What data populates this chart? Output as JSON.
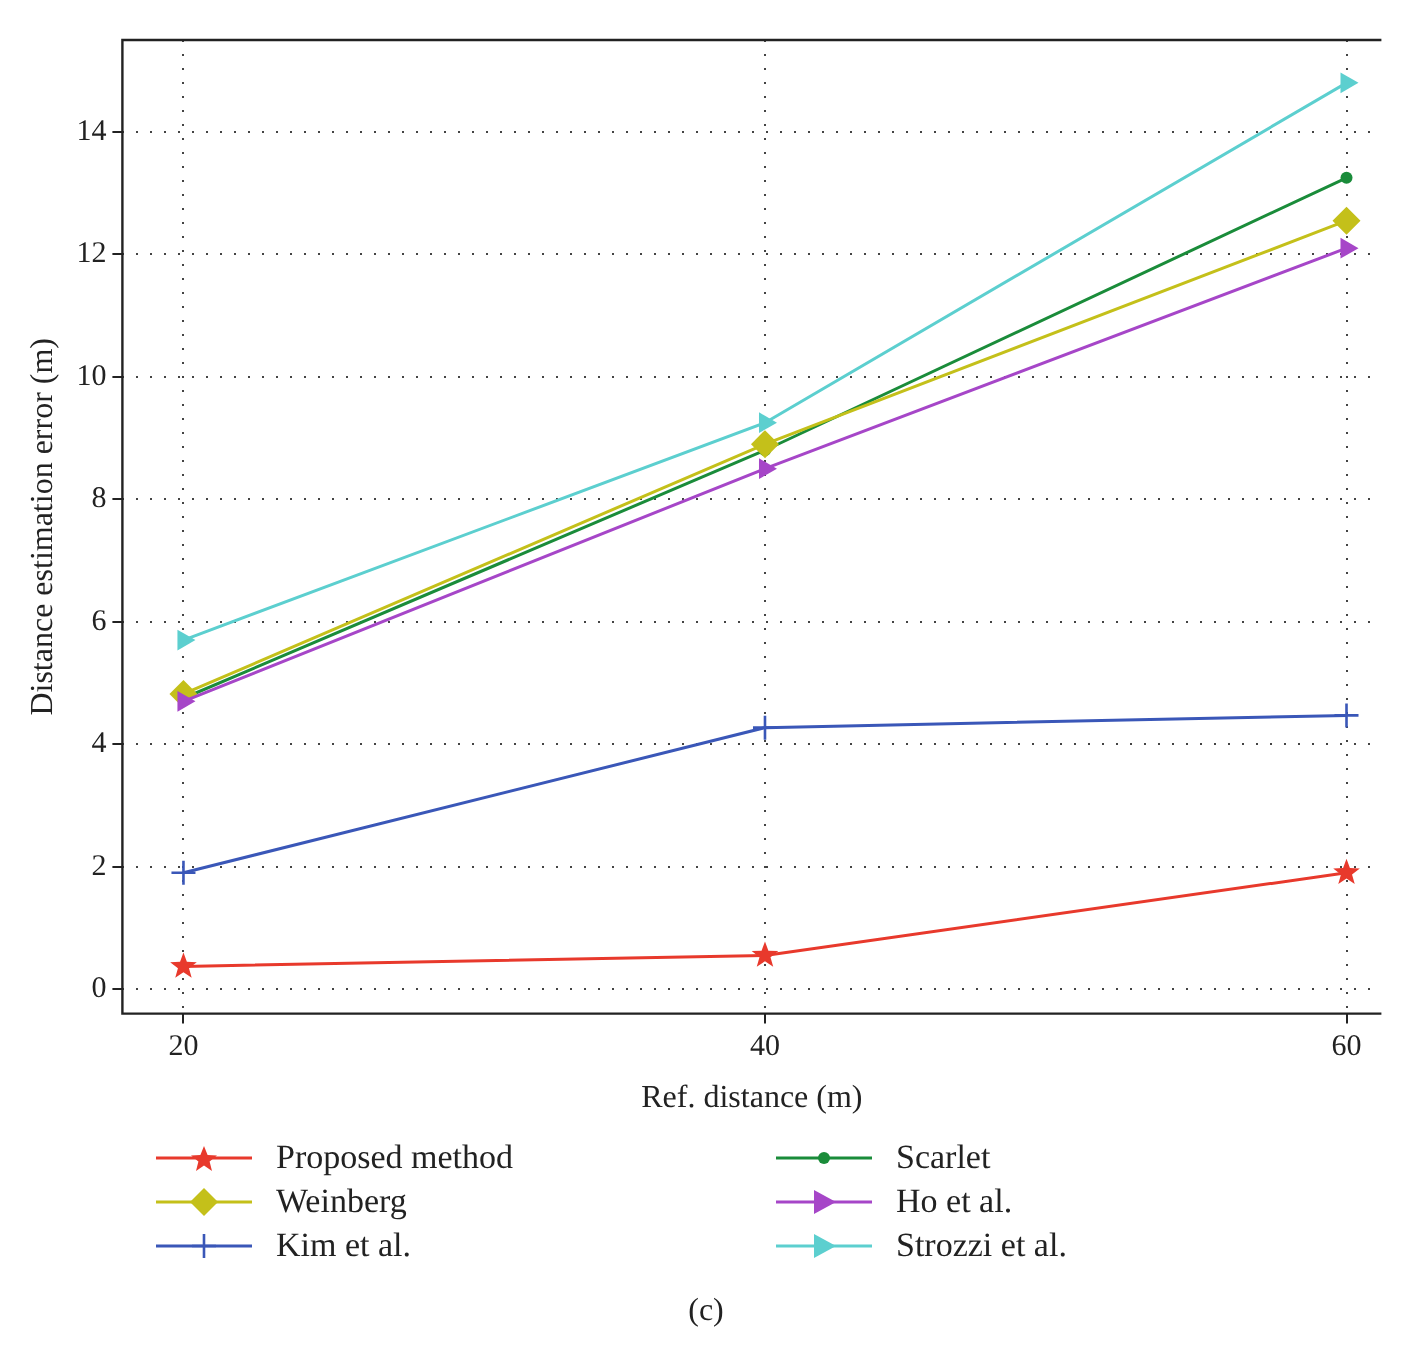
{
  "chart_data": {
    "type": "line",
    "xlabel": "Ref. distance (m)",
    "ylabel": "Distance estimation error (m)",
    "x": [
      20,
      40,
      60
    ],
    "xlim": [
      17.9,
      61.2
    ],
    "xticks": [
      20,
      40,
      60
    ],
    "ylim": [
      -0.4,
      15.5
    ],
    "yticks": [
      0,
      2,
      4,
      6,
      8,
      10,
      12,
      14
    ],
    "grid": true,
    "legend": "bottom",
    "annotations": [
      "(c)"
    ],
    "series": [
      {
        "name": "Proposed method",
        "color": "#e8392c",
        "marker": "star",
        "values": [
          0.37,
          0.55,
          1.9
        ]
      },
      {
        "name": "Scarlet",
        "color": "#1a8c3a",
        "marker": "circle",
        "values": [
          4.75,
          8.8,
          13.25
        ]
      },
      {
        "name": "Weinberg",
        "color": "#c4c01a",
        "marker": "diamond",
        "values": [
          4.82,
          8.9,
          12.55
        ]
      },
      {
        "name": "Ho et al.",
        "color": "#a646c8",
        "marker": "triangle",
        "values": [
          4.7,
          8.5,
          12.1
        ]
      },
      {
        "name": "Kim et al.",
        "color": "#3a57b8",
        "marker": "cross",
        "values": [
          1.9,
          4.27,
          4.47
        ]
      },
      {
        "name": "Strozzi et al.",
        "color": "#5ccfcf",
        "marker": "triangle",
        "values": [
          5.7,
          9.25,
          14.8
        ]
      }
    ]
  }
}
